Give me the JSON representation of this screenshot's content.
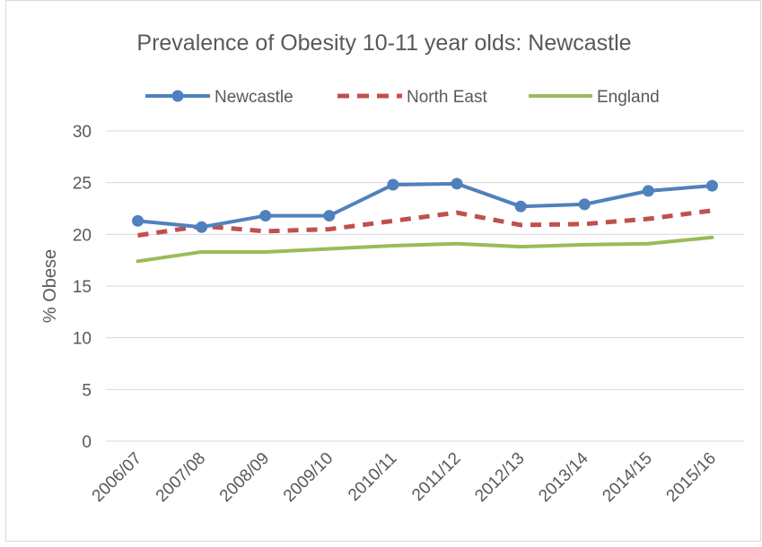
{
  "chart_data": {
    "type": "line",
    "title": "Prevalence of Obesity 10-11 year olds: Newcastle",
    "xlabel": "",
    "ylabel": "% Obese",
    "categories": [
      "2006/07",
      "2007/08",
      "2008/09",
      "2009/10",
      "2010/11",
      "2011/12",
      "2012/13",
      "2013/14",
      "2014/15",
      "2015/16"
    ],
    "ylim": [
      0,
      30
    ],
    "yticks": [
      0,
      5,
      10,
      15,
      20,
      25,
      30
    ],
    "grid": true,
    "legend_position": "top",
    "series": [
      {
        "name": "Newcastle",
        "color": "#4f81bd",
        "style": "solid-markers",
        "values": [
          21.3,
          20.7,
          21.8,
          21.8,
          24.8,
          24.9,
          22.7,
          22.9,
          24.2,
          24.7
        ]
      },
      {
        "name": "North East",
        "color": "#c0504d",
        "style": "dashed",
        "values": [
          19.9,
          20.8,
          20.3,
          20.5,
          21.3,
          22.1,
          20.9,
          21.0,
          21.5,
          22.3
        ]
      },
      {
        "name": "England",
        "color": "#9bbb59",
        "style": "solid",
        "values": [
          17.4,
          18.3,
          18.3,
          18.6,
          18.9,
          19.1,
          18.8,
          19.0,
          19.1,
          19.7
        ]
      }
    ]
  }
}
